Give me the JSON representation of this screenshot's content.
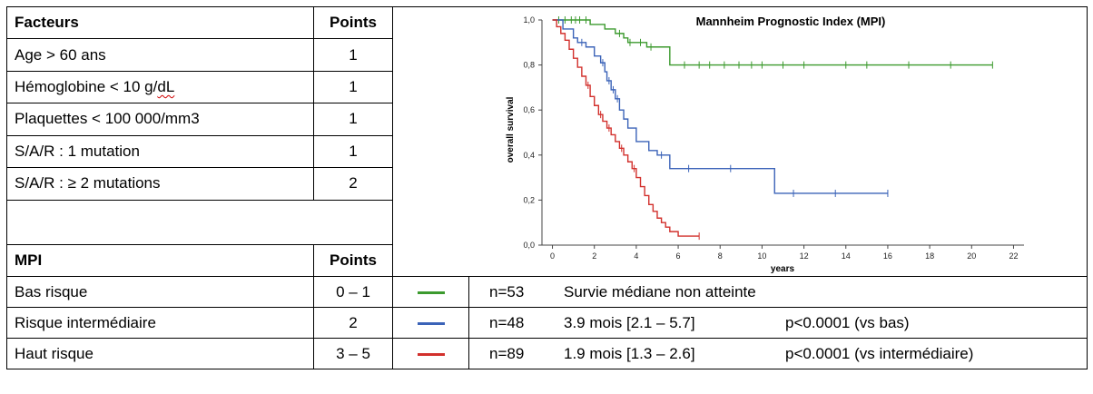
{
  "factors_table": {
    "header": {
      "factor": "Facteurs",
      "points": "Points"
    },
    "rows": [
      {
        "factor": "Age > 60 ans",
        "points": "1"
      },
      {
        "factor_prefix": "Hémoglobine < 10 g/",
        "factor_suffix": "dL",
        "points": "1"
      },
      {
        "factor": "Plaquettes < 100 000/mm3",
        "points": "1"
      },
      {
        "factor": "S/A/R : 1 mutation",
        "points": "1"
      },
      {
        "factor": "S/A/R : ≥ 2 mutations",
        "points": "2"
      }
    ]
  },
  "mpi_table": {
    "header": {
      "group": "MPI",
      "points": "Points"
    },
    "rows": [
      {
        "group": "Bas risque",
        "points": "0 – 1",
        "color": "#3c9a2e",
        "n": "n=53",
        "median": "Survie médiane non atteinte",
        "p": ""
      },
      {
        "group": "Risque intermédiaire",
        "points": "2",
        "color": "#3b63b8",
        "n": "n=48",
        "median": "3.9 mois [2.1 – 5.7]",
        "p": "p<0.0001 (vs bas)"
      },
      {
        "group": "Haut risque",
        "points": "3 – 5",
        "color": "#d2302c",
        "n": "n=89",
        "median": "1.9 mois [1.3 – 2.6]",
        "p": "p<0.0001 (vs intermédiaire)"
      }
    ]
  },
  "chart_data": {
    "type": "line",
    "title": "Mannheim Prognostic Index (MPI)",
    "xlabel": "years",
    "ylabel": "overall survival",
    "xlim": [
      -0.5,
      22.5
    ],
    "ylim": [
      0,
      1
    ],
    "x_ticks": [
      "0",
      "2",
      "4",
      "6",
      "8",
      "10",
      "12",
      "14",
      "16",
      "18",
      "20",
      "22"
    ],
    "y_ticks": [
      "0,0",
      "0,2",
      "0,4",
      "0,6",
      "0,8",
      "1,0"
    ],
    "grid": false,
    "series": [
      {
        "color": "#3c9a2e",
        "x": [
          0,
          1.5,
          1.8,
          2.5,
          3.0,
          3.4,
          3.6,
          4.5,
          5.6,
          8,
          10.5,
          21
        ],
        "y": [
          1.0,
          1.0,
          0.98,
          0.96,
          0.94,
          0.92,
          0.9,
          0.88,
          0.8,
          0.8,
          0.8,
          0.8
        ],
        "censored_x": [
          0.3,
          0.6,
          0.9,
          1.1,
          1.3,
          1.6,
          3.2,
          3.7,
          4.2,
          4.7,
          6.3,
          7.0,
          7.5,
          8.2,
          8.9,
          9.5,
          10.0,
          11.0,
          12.0,
          14.0,
          15.0,
          17.0,
          19.0,
          21.0
        ]
      },
      {
        "color": "#3b63b8",
        "x": [
          0,
          0.5,
          1.0,
          1.2,
          1.6,
          2.0,
          2.3,
          2.5,
          2.6,
          2.8,
          3.0,
          3.2,
          3.4,
          3.6,
          4.0,
          4.6,
          5.0,
          5.6,
          7.5,
          10.6,
          16.0
        ],
        "y": [
          1.0,
          0.96,
          0.92,
          0.9,
          0.88,
          0.84,
          0.81,
          0.77,
          0.73,
          0.69,
          0.65,
          0.6,
          0.56,
          0.52,
          0.46,
          0.42,
          0.4,
          0.34,
          0.34,
          0.23,
          0.23
        ],
        "censored_x": [
          1.4,
          2.4,
          2.7,
          2.9,
          3.1,
          5.2,
          6.5,
          8.5,
          11.5,
          13.5,
          16.0
        ]
      },
      {
        "color": "#d2302c",
        "x": [
          0,
          0.2,
          0.4,
          0.6,
          0.8,
          1.0,
          1.2,
          1.4,
          1.6,
          1.8,
          2.0,
          2.2,
          2.4,
          2.6,
          2.8,
          3.0,
          3.2,
          3.4,
          3.6,
          3.8,
          4.0,
          4.2,
          4.4,
          4.6,
          4.8,
          5.0,
          5.2,
          5.4,
          5.6,
          6.0,
          7.0
        ],
        "y": [
          1.0,
          0.97,
          0.94,
          0.91,
          0.87,
          0.83,
          0.79,
          0.75,
          0.71,
          0.66,
          0.62,
          0.58,
          0.55,
          0.52,
          0.49,
          0.46,
          0.43,
          0.4,
          0.37,
          0.34,
          0.3,
          0.26,
          0.22,
          0.18,
          0.15,
          0.12,
          0.1,
          0.08,
          0.06,
          0.04,
          0.04
        ],
        "censored_x": [
          1.7,
          2.3,
          2.7,
          3.3,
          3.9,
          7.0
        ]
      }
    ]
  }
}
